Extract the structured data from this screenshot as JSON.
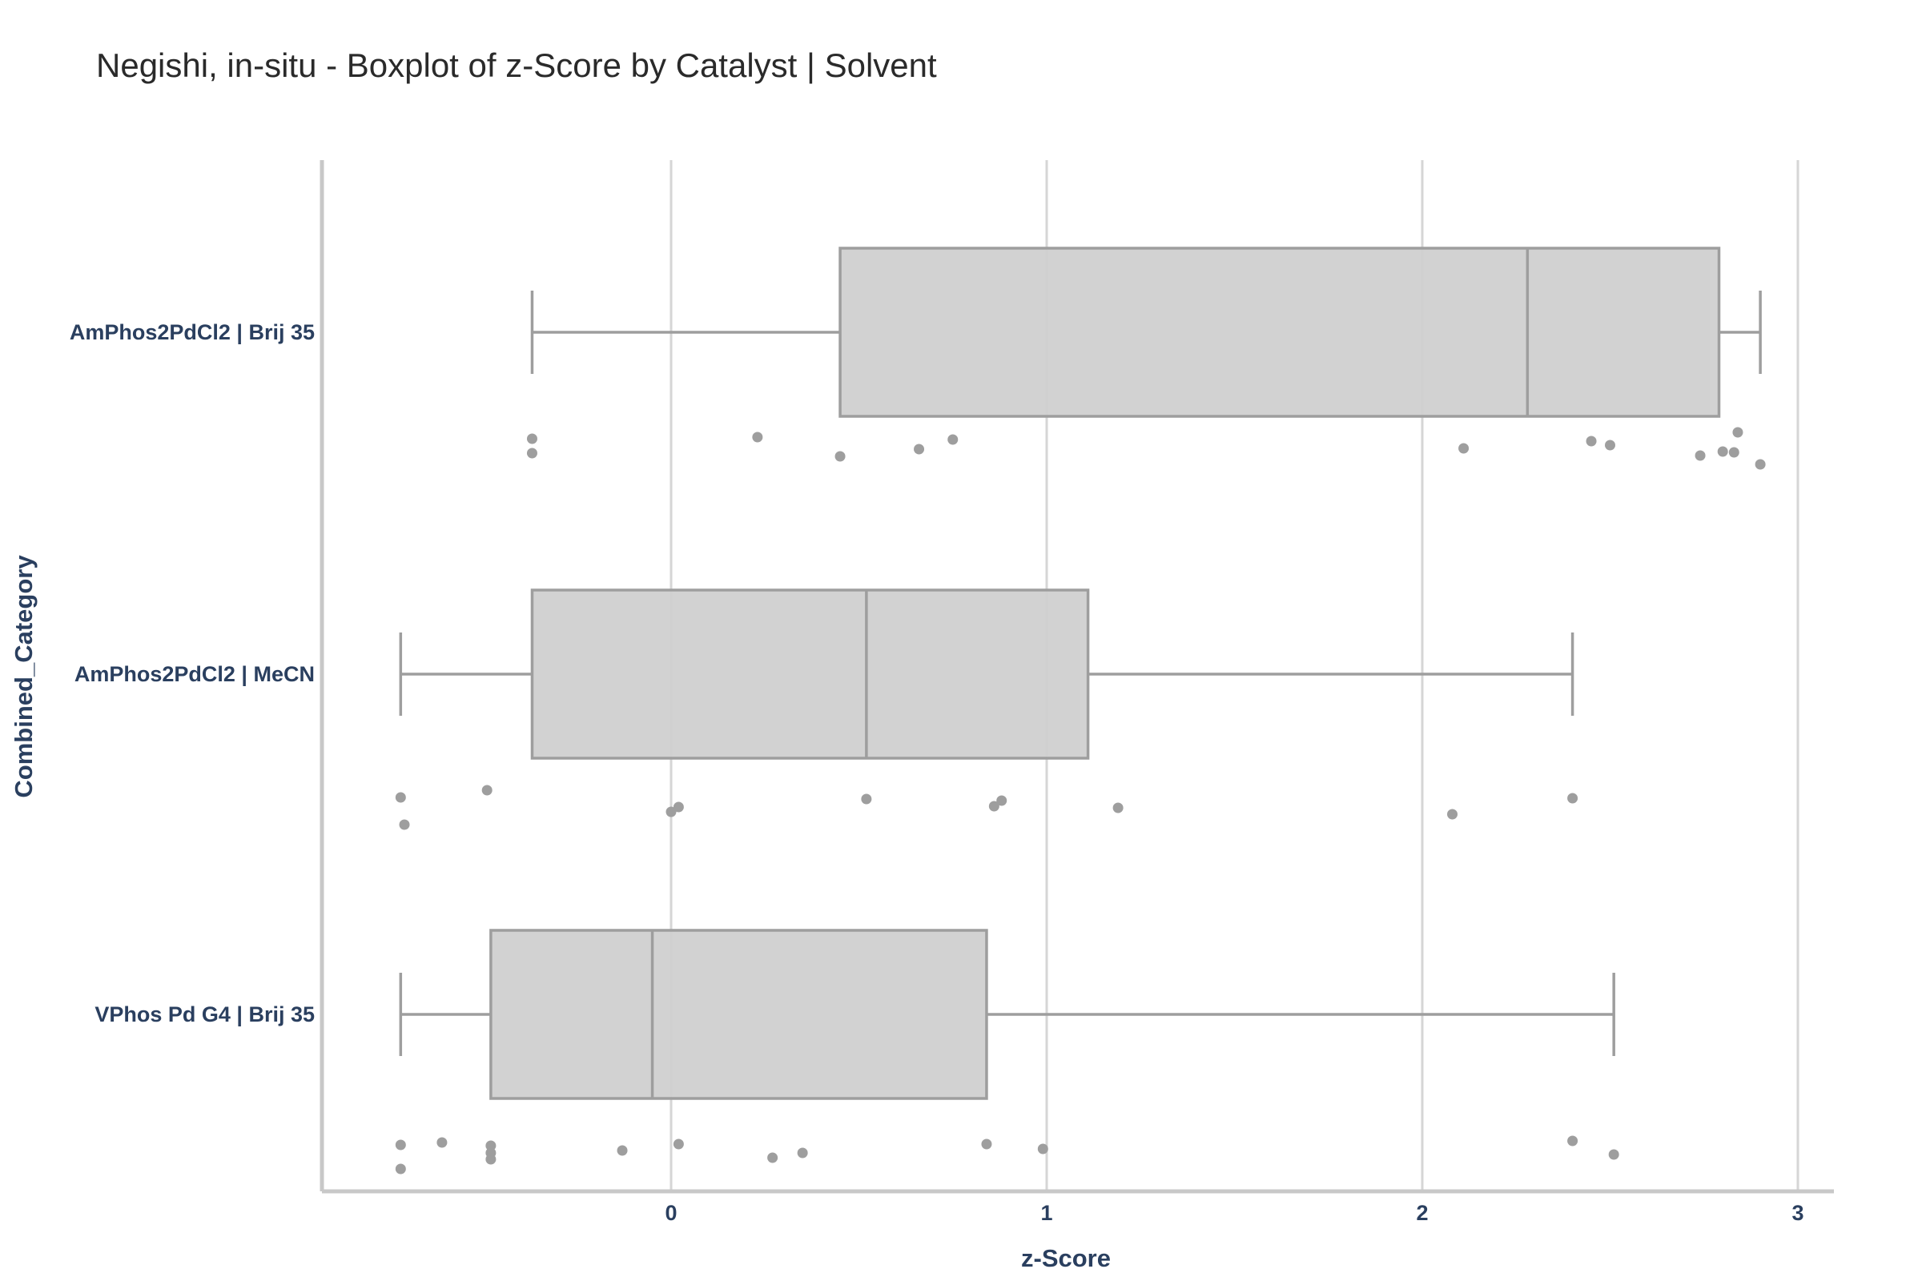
{
  "chart_data": {
    "type": "box",
    "title": "Negishi, in-situ - Boxplot of z-Score by Catalyst | Solvent",
    "xlabel": "z-Score",
    "ylabel": "Combined_Category",
    "xlim": [
      -0.93,
      3.1
    ],
    "x_ticks": [
      0,
      1,
      2,
      3
    ],
    "orientation": "horizontal",
    "grid": "x",
    "box_color": "#d0d0d0",
    "line_color": "#9e9e9e",
    "categories": [
      "AmPhos2PdCl2 | Brij 35",
      "AmPhos2PdCl2 | MeCN",
      "VPhos Pd G4 | Brij 35"
    ],
    "boxes": [
      {
        "category": "AmPhos2PdCl2 | Brij 35",
        "whisker_low": -0.37,
        "q1": 0.45,
        "median": 2.28,
        "q3": 2.79,
        "whisker_high": 2.9,
        "points": [
          -0.37,
          -0.37,
          0.23,
          0.45,
          0.66,
          0.75,
          2.11,
          2.45,
          2.5,
          2.74,
          2.8,
          2.83,
          2.84,
          2.9
        ]
      },
      {
        "category": "AmPhos2PdCl2 | MeCN",
        "whisker_low": -0.72,
        "q1": -0.37,
        "median": 0.52,
        "q3": 1.11,
        "whisker_high": 2.4,
        "points": [
          -0.72,
          -0.71,
          -0.49,
          0.0,
          0.02,
          0.52,
          0.86,
          0.88,
          1.19,
          2.08,
          2.4
        ]
      },
      {
        "category": "VPhos Pd G4 | Brij 35",
        "whisker_low": -0.72,
        "q1": -0.48,
        "median": -0.05,
        "q3": 0.84,
        "whisker_high": 2.51,
        "points": [
          -0.72,
          -0.72,
          -0.61,
          -0.48,
          -0.48,
          -0.48,
          -0.13,
          0.02,
          0.27,
          0.35,
          0.84,
          0.99,
          2.4,
          2.51
        ]
      }
    ]
  }
}
